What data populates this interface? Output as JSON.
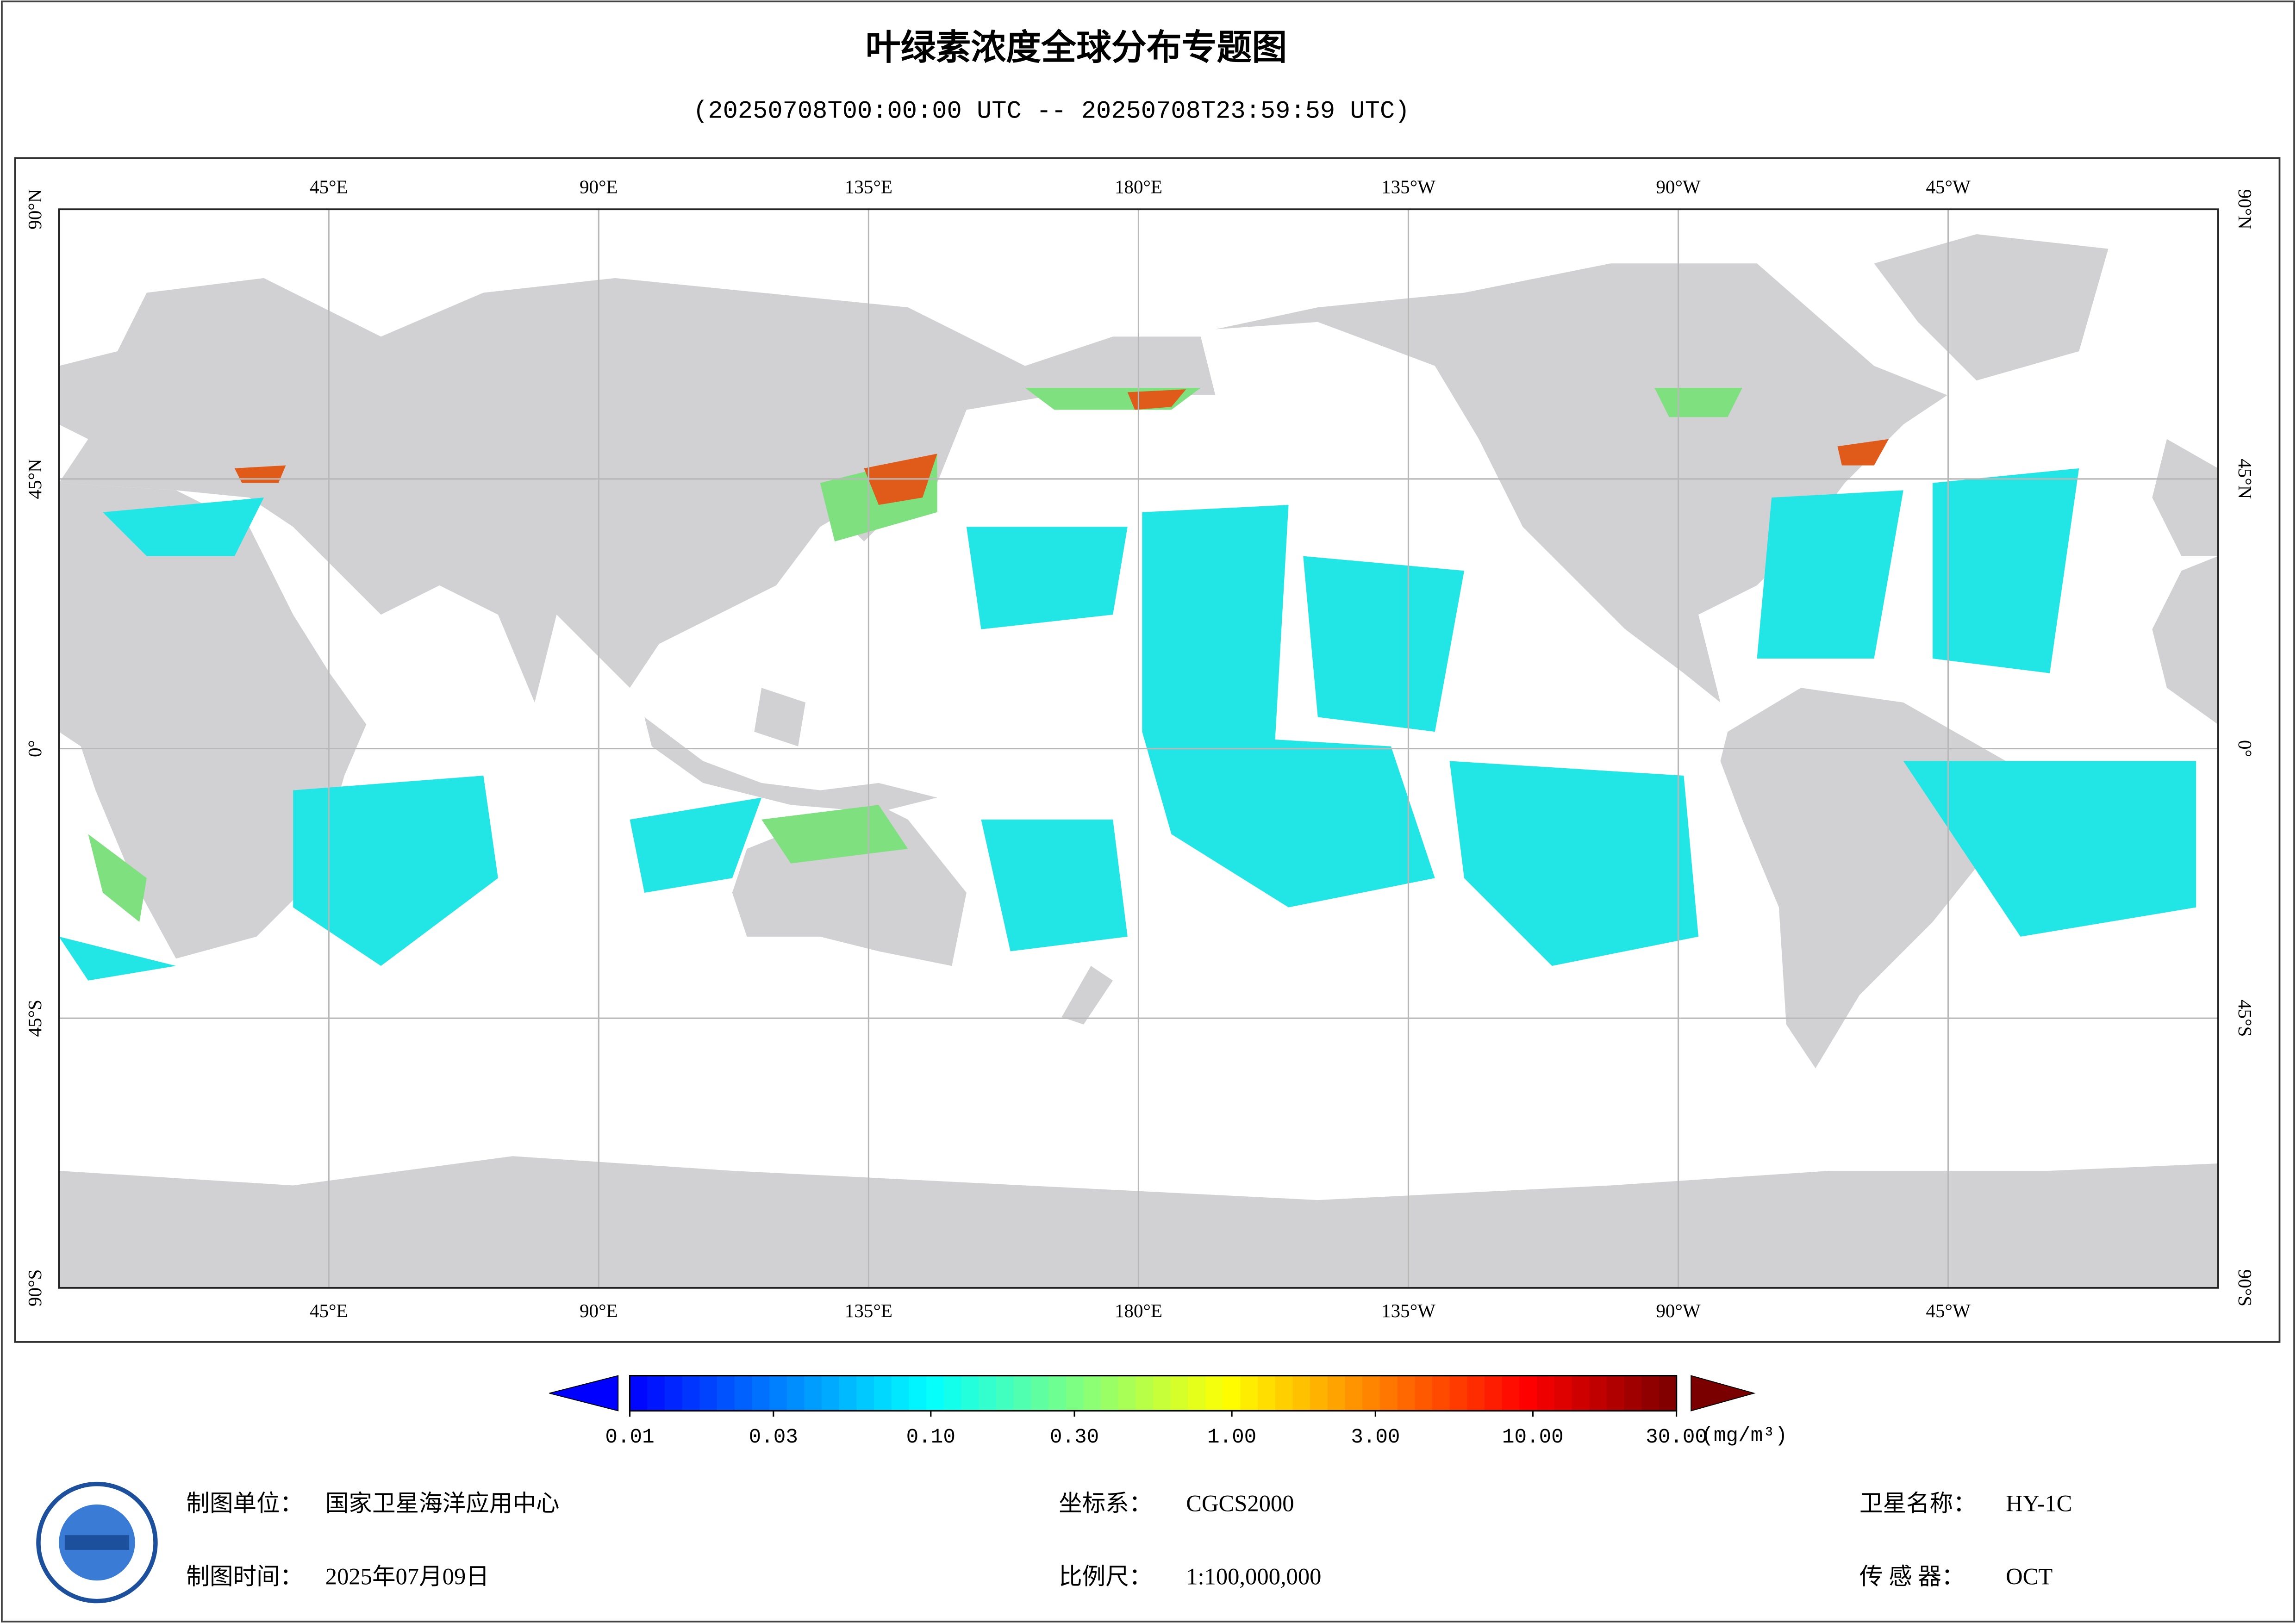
{
  "title": "叶绿素浓度全球分布专题图",
  "subtitle": "(20250708T00:00:00 UTC -- 20250708T23:59:59 UTC)",
  "map": {
    "xlim": [
      0,
      360
    ],
    "ylim": [
      -90,
      90
    ],
    "lon_ticks": [
      {
        "value": 45,
        "label": "45°E"
      },
      {
        "value": 90,
        "label": "90°E"
      },
      {
        "value": 135,
        "label": "135°E"
      },
      {
        "value": 180,
        "label": "180°E"
      },
      {
        "value": 225,
        "label": "135°W"
      },
      {
        "value": 270,
        "label": "90°W"
      },
      {
        "value": 315,
        "label": "45°W"
      }
    ],
    "lat_ticks": [
      {
        "value": 90,
        "label": "90°N"
      },
      {
        "value": 45,
        "label": "45°N"
      },
      {
        "value": 0,
        "label": "0°"
      },
      {
        "value": -45,
        "label": "45°S"
      },
      {
        "value": -90,
        "label": "90°S"
      }
    ]
  },
  "colorbar": {
    "scale": "log",
    "range": [
      0.01,
      30
    ],
    "colors": [
      "#0000ff",
      "#0080ff",
      "#00ffff",
      "#80ff80",
      "#ffff00",
      "#ff8000",
      "#ff0000",
      "#7a0000"
    ],
    "under_color": "#0000ff",
    "over_color": "#7a0000",
    "ticks": [
      {
        "value": 0.01,
        "label": "0.01"
      },
      {
        "value": 0.03,
        "label": "0.03"
      },
      {
        "value": 0.1,
        "label": "0.10"
      },
      {
        "value": 0.3,
        "label": "0.30"
      },
      {
        "value": 1,
        "label": "1.00"
      },
      {
        "value": 3,
        "label": "3.00"
      },
      {
        "value": 10,
        "label": "10.00"
      },
      {
        "value": 30,
        "label": "30.00"
      }
    ],
    "unit": "(mg/m³)"
  },
  "footer": {
    "producer_label": "制图单位：",
    "producer": "国家卫星海洋应用中心",
    "date_label": "制图时间：",
    "date": "2025年07月09日",
    "crs_label": "坐标系：",
    "crs": "CGCS2000",
    "scale_label": "比例尺：",
    "scale": "1:100,000,000",
    "satellite_label": "卫星名称：",
    "satellite": "HY-1C",
    "sensor_label": "传 感 器：",
    "sensor": "OCT"
  }
}
